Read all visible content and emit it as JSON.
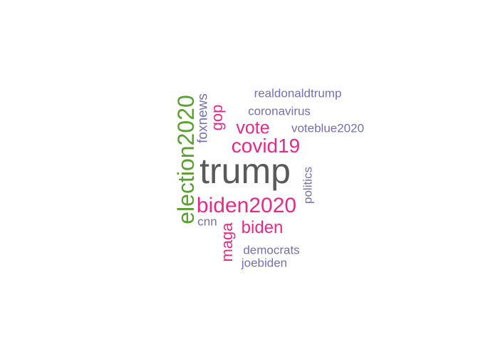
{
  "wordcloud": {
    "words": [
      {
        "text": "trump",
        "color": "#595959"
      },
      {
        "text": "election2020",
        "color": "#5aa02c"
      },
      {
        "text": "biden2020",
        "color": "#e7298a"
      },
      {
        "text": "covid19",
        "color": "#e7298a"
      },
      {
        "text": "vote",
        "color": "#e7298a"
      },
      {
        "text": "biden",
        "color": "#e7298a"
      },
      {
        "text": "maga",
        "color": "#e7298a"
      },
      {
        "text": "gop",
        "color": "#e7298a"
      },
      {
        "text": "foxnews",
        "color": "#7570b3"
      },
      {
        "text": "realdonaldtrump",
        "color": "#7570b3"
      },
      {
        "text": "coronavirus",
        "color": "#7570b3"
      },
      {
        "text": "voteblue2020",
        "color": "#7570b3"
      },
      {
        "text": "politics",
        "color": "#7570b3"
      },
      {
        "text": "cnn",
        "color": "#7570b3"
      },
      {
        "text": "democrats",
        "color": "#7570b3"
      },
      {
        "text": "joebiden",
        "color": "#7570b3"
      }
    ]
  }
}
